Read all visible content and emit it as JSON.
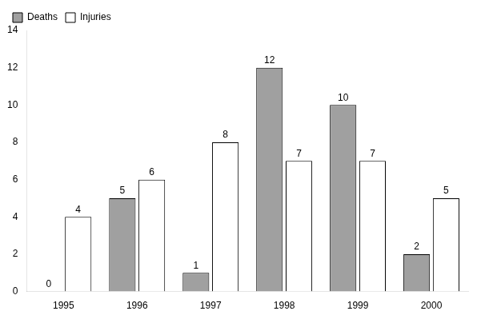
{
  "chart_data": {
    "type": "bar",
    "categories": [
      "1995",
      "1996",
      "1997",
      "1998",
      "1999",
      "2000"
    ],
    "series": [
      {
        "name": "Deaths",
        "color": "#a0a0a0",
        "values": [
          0,
          5,
          1,
          12,
          10,
          2
        ]
      },
      {
        "name": "Injuries",
        "color": "#ffffff",
        "values": [
          4,
          6,
          8,
          7,
          7,
          5
        ]
      }
    ],
    "ylim": [
      0,
      14
    ],
    "yticks": [
      0,
      2,
      4,
      6,
      8,
      10,
      12,
      14
    ],
    "grid": false,
    "legend": "upper left",
    "data_labels": true
  }
}
